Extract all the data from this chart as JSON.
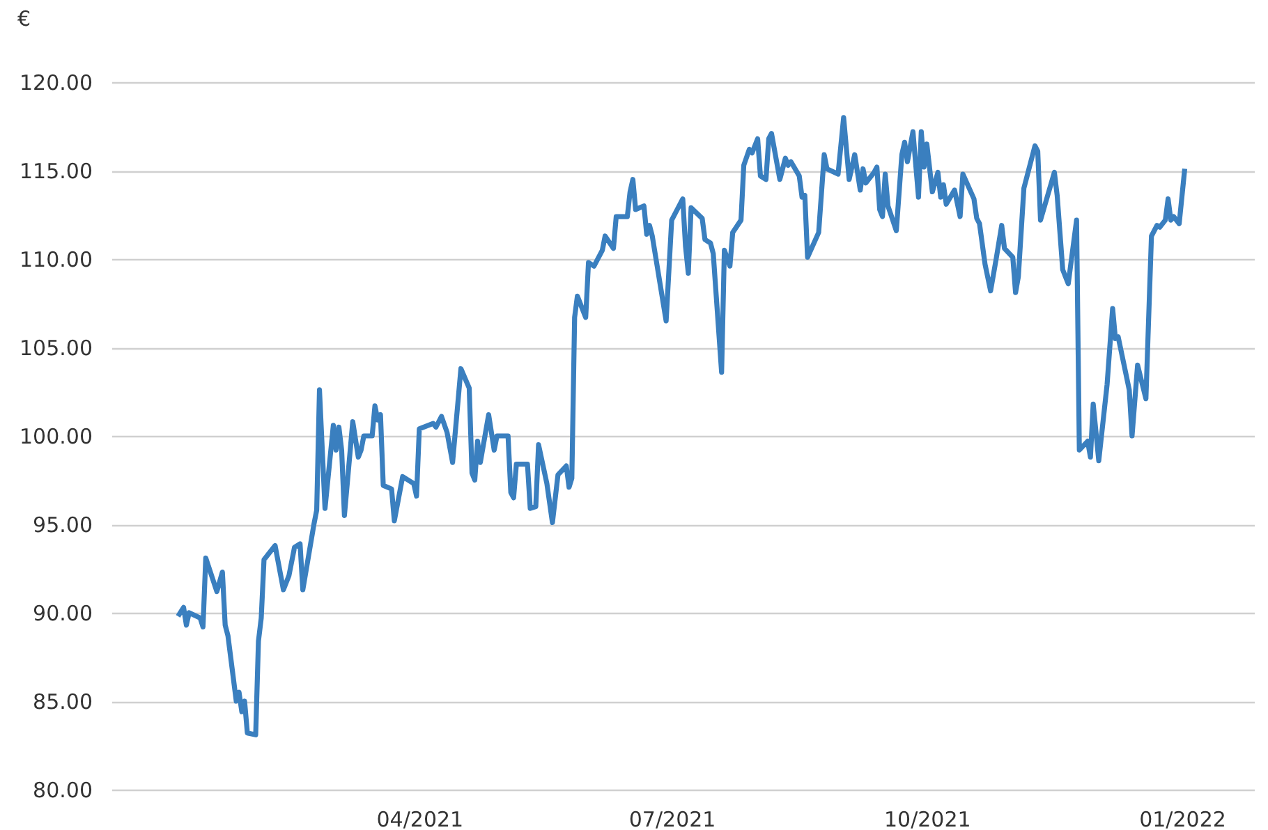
{
  "chart_data": {
    "type": "line",
    "ylabel": "€",
    "x": [
      "2021-01-04",
      "2021-01-06",
      "2021-01-07",
      "2021-01-08",
      "2021-01-12",
      "2021-01-13",
      "2021-01-14",
      "2021-01-18",
      "2021-01-20",
      "2021-01-21",
      "2021-01-22",
      "2021-01-25",
      "2021-01-26",
      "2021-01-27",
      "2021-01-28",
      "2021-01-29",
      "2021-02-01",
      "2021-02-02",
      "2021-02-03",
      "2021-02-04",
      "2021-02-08",
      "2021-02-11",
      "2021-02-13",
      "2021-02-15",
      "2021-02-17",
      "2021-02-18",
      "2021-02-22",
      "2021-02-23",
      "2021-02-24",
      "2021-02-26",
      "2021-03-01",
      "2021-03-02",
      "2021-03-03",
      "2021-03-04",
      "2021-03-05",
      "2021-03-08",
      "2021-03-10",
      "2021-03-11",
      "2021-03-12",
      "2021-03-15",
      "2021-03-16",
      "2021-03-17",
      "2021-03-18",
      "2021-03-19",
      "2021-03-22",
      "2021-03-23",
      "2021-03-26",
      "2021-03-30",
      "2021-03-31",
      "2021-04-01",
      "2021-04-06",
      "2021-04-07",
      "2021-04-09",
      "2021-04-11",
      "2021-04-13",
      "2021-04-16",
      "2021-04-19",
      "2021-04-20",
      "2021-04-21",
      "2021-04-22",
      "2021-04-23",
      "2021-04-26",
      "2021-04-28",
      "2021-04-29",
      "2021-05-03",
      "2021-05-04",
      "2021-05-05",
      "2021-05-06",
      "2021-05-10",
      "2021-05-11",
      "2021-05-13",
      "2021-05-14",
      "2021-05-17",
      "2021-05-19",
      "2021-05-21",
      "2021-05-24",
      "2021-05-25",
      "2021-05-26",
      "2021-05-27",
      "2021-05-28",
      "2021-05-31",
      "2021-06-01",
      "2021-06-03",
      "2021-06-06",
      "2021-06-07",
      "2021-06-10",
      "2021-06-11",
      "2021-06-15",
      "2021-06-16",
      "2021-06-17",
      "2021-06-18",
      "2021-06-21",
      "2021-06-22",
      "2021-06-23",
      "2021-06-24",
      "2021-06-29",
      "2021-07-01",
      "2021-07-05",
      "2021-07-06",
      "2021-07-07",
      "2021-07-08",
      "2021-07-12",
      "2021-07-13",
      "2021-07-15",
      "2021-07-16",
      "2021-07-19",
      "2021-07-20",
      "2021-07-22",
      "2021-07-23",
      "2021-07-26",
      "2021-07-27",
      "2021-07-29",
      "2021-07-30",
      "2021-08-01",
      "2021-08-02",
      "2021-08-04",
      "2021-08-05",
      "2021-08-06",
      "2021-08-09",
      "2021-08-11",
      "2021-08-12",
      "2021-08-13",
      "2021-08-16",
      "2021-08-17",
      "2021-08-18",
      "2021-08-19",
      "2021-08-23",
      "2021-08-25",
      "2021-08-26",
      "2021-08-30",
      "2021-09-01",
      "2021-09-03",
      "2021-09-05",
      "2021-09-07",
      "2021-09-08",
      "2021-09-09",
      "2021-09-12",
      "2021-09-13",
      "2021-09-14",
      "2021-09-15",
      "2021-09-16",
      "2021-09-17",
      "2021-09-20",
      "2021-09-22",
      "2021-09-23",
      "2021-09-24",
      "2021-09-26",
      "2021-09-28",
      "2021-09-29",
      "2021-09-30",
      "2021-10-01",
      "2021-10-03",
      "2021-10-05",
      "2021-10-06",
      "2021-10-07",
      "2021-10-08",
      "2021-10-11",
      "2021-10-13",
      "2021-10-14",
      "2021-10-18",
      "2021-10-19",
      "2021-10-20",
      "2021-10-22",
      "2021-10-24",
      "2021-10-26",
      "2021-10-28",
      "2021-10-29",
      "2021-11-01",
      "2021-11-02",
      "2021-11-03",
      "2021-11-05",
      "2021-11-09",
      "2021-11-10",
      "2021-11-11",
      "2021-11-16",
      "2021-11-17",
      "2021-11-19",
      "2021-11-21",
      "2021-11-24",
      "2021-11-25",
      "2021-11-28",
      "2021-11-29",
      "2021-11-30",
      "2021-12-02",
      "2021-12-05",
      "2021-12-07",
      "2021-12-08",
      "2021-12-09",
      "2021-12-13",
      "2021-12-14",
      "2021-12-16",
      "2021-12-19",
      "2021-12-21",
      "2021-12-23",
      "2021-12-24",
      "2021-12-26",
      "2021-12-27",
      "2021-12-28",
      "2021-12-29",
      "2021-12-31",
      "2022-01-02"
    ],
    "series": [
      {
        "color": "#3a7fbf",
        "values": [
          89.8,
          90.3,
          89.3,
          90.0,
          89.7,
          89.2,
          93.1,
          91.2,
          92.3,
          89.3,
          88.7,
          85.0,
          85.5,
          84.4,
          85.0,
          83.2,
          83.1,
          88.4,
          89.7,
          93.0,
          93.8,
          91.3,
          92.1,
          93.7,
          93.9,
          91.3,
          95.0,
          95.8,
          102.6,
          95.9,
          100.6,
          99.2,
          100.5,
          99.2,
          95.5,
          100.8,
          98.8,
          99.2,
          100.0,
          100.0,
          101.7,
          100.9,
          101.2,
          97.2,
          97.0,
          95.2,
          97.7,
          97.3,
          96.6,
          100.4,
          100.7,
          100.5,
          101.1,
          100.2,
          98.5,
          103.8,
          102.7,
          97.9,
          97.5,
          99.7,
          98.5,
          101.2,
          99.2,
          100.0,
          100.0,
          96.8,
          96.5,
          98.4,
          98.4,
          95.9,
          96.0,
          99.5,
          97.3,
          95.1,
          97.8,
          98.3,
          97.1,
          97.6,
          106.7,
          107.9,
          106.7,
          109.8,
          109.6,
          110.5,
          111.3,
          110.6,
          112.4,
          112.4,
          113.8,
          114.5,
          112.8,
          113.0,
          111.4,
          111.9,
          111.3,
          106.5,
          112.2,
          113.4,
          110.7,
          109.2,
          112.9,
          112.3,
          111.1,
          110.9,
          110.3,
          103.6,
          110.5,
          109.6,
          111.5,
          112.2,
          115.3,
          116.2,
          116.0,
          116.8,
          114.7,
          114.5,
          116.8,
          117.1,
          114.5,
          115.7,
          115.3,
          115.5,
          114.7,
          113.5,
          113.6,
          110.1,
          111.5,
          115.9,
          115.1,
          114.8,
          118.0,
          114.5,
          115.9,
          113.9,
          115.1,
          114.3,
          114.9,
          115.2,
          112.8,
          112.4,
          114.8,
          113.0,
          111.6,
          115.9,
          116.6,
          115.5,
          117.2,
          113.5,
          117.2,
          115.2,
          116.5,
          113.8,
          114.9,
          113.5,
          114.2,
          113.1,
          113.9,
          112.4,
          114.8,
          113.4,
          112.3,
          112.0,
          109.7,
          108.2,
          110.0,
          111.9,
          110.6,
          110.1,
          108.1,
          109.0,
          114.0,
          116.4,
          116.1,
          112.2,
          114.9,
          113.6,
          109.4,
          108.6,
          112.2,
          99.2,
          99.7,
          98.8,
          101.8,
          98.6,
          102.9,
          107.2,
          105.5,
          105.6,
          102.6,
          100.0,
          104.0,
          102.1,
          111.3,
          111.9,
          111.8,
          112.2,
          113.4,
          112.2,
          112.4,
          112.0,
          115.1
        ]
      }
    ],
    "xlim": [
      "2020-12-11",
      "2022-01-27"
    ],
    "xticks": [
      {
        "value": "2021-04-01",
        "label": "04/2021"
      },
      {
        "value": "2021-07-01",
        "label": "07/2021"
      },
      {
        "value": "2021-10-01",
        "label": "10/2021"
      },
      {
        "value": "2022-01-01",
        "label": "01/2022"
      }
    ],
    "ylim": [
      80,
      120
    ],
    "yticks": [
      {
        "value": 80,
        "label": "80.00"
      },
      {
        "value": 85,
        "label": "85.00"
      },
      {
        "value": 90,
        "label": "90.00"
      },
      {
        "value": 95,
        "label": "95.00"
      },
      {
        "value": 100,
        "label": "100.00"
      },
      {
        "value": 105,
        "label": "105.00"
      },
      {
        "value": 110,
        "label": "110.00"
      },
      {
        "value": 115,
        "label": "115.00"
      },
      {
        "value": 120,
        "label": "120.00"
      }
    ],
    "grid": "y",
    "marker": "none",
    "line_style": "solid"
  }
}
